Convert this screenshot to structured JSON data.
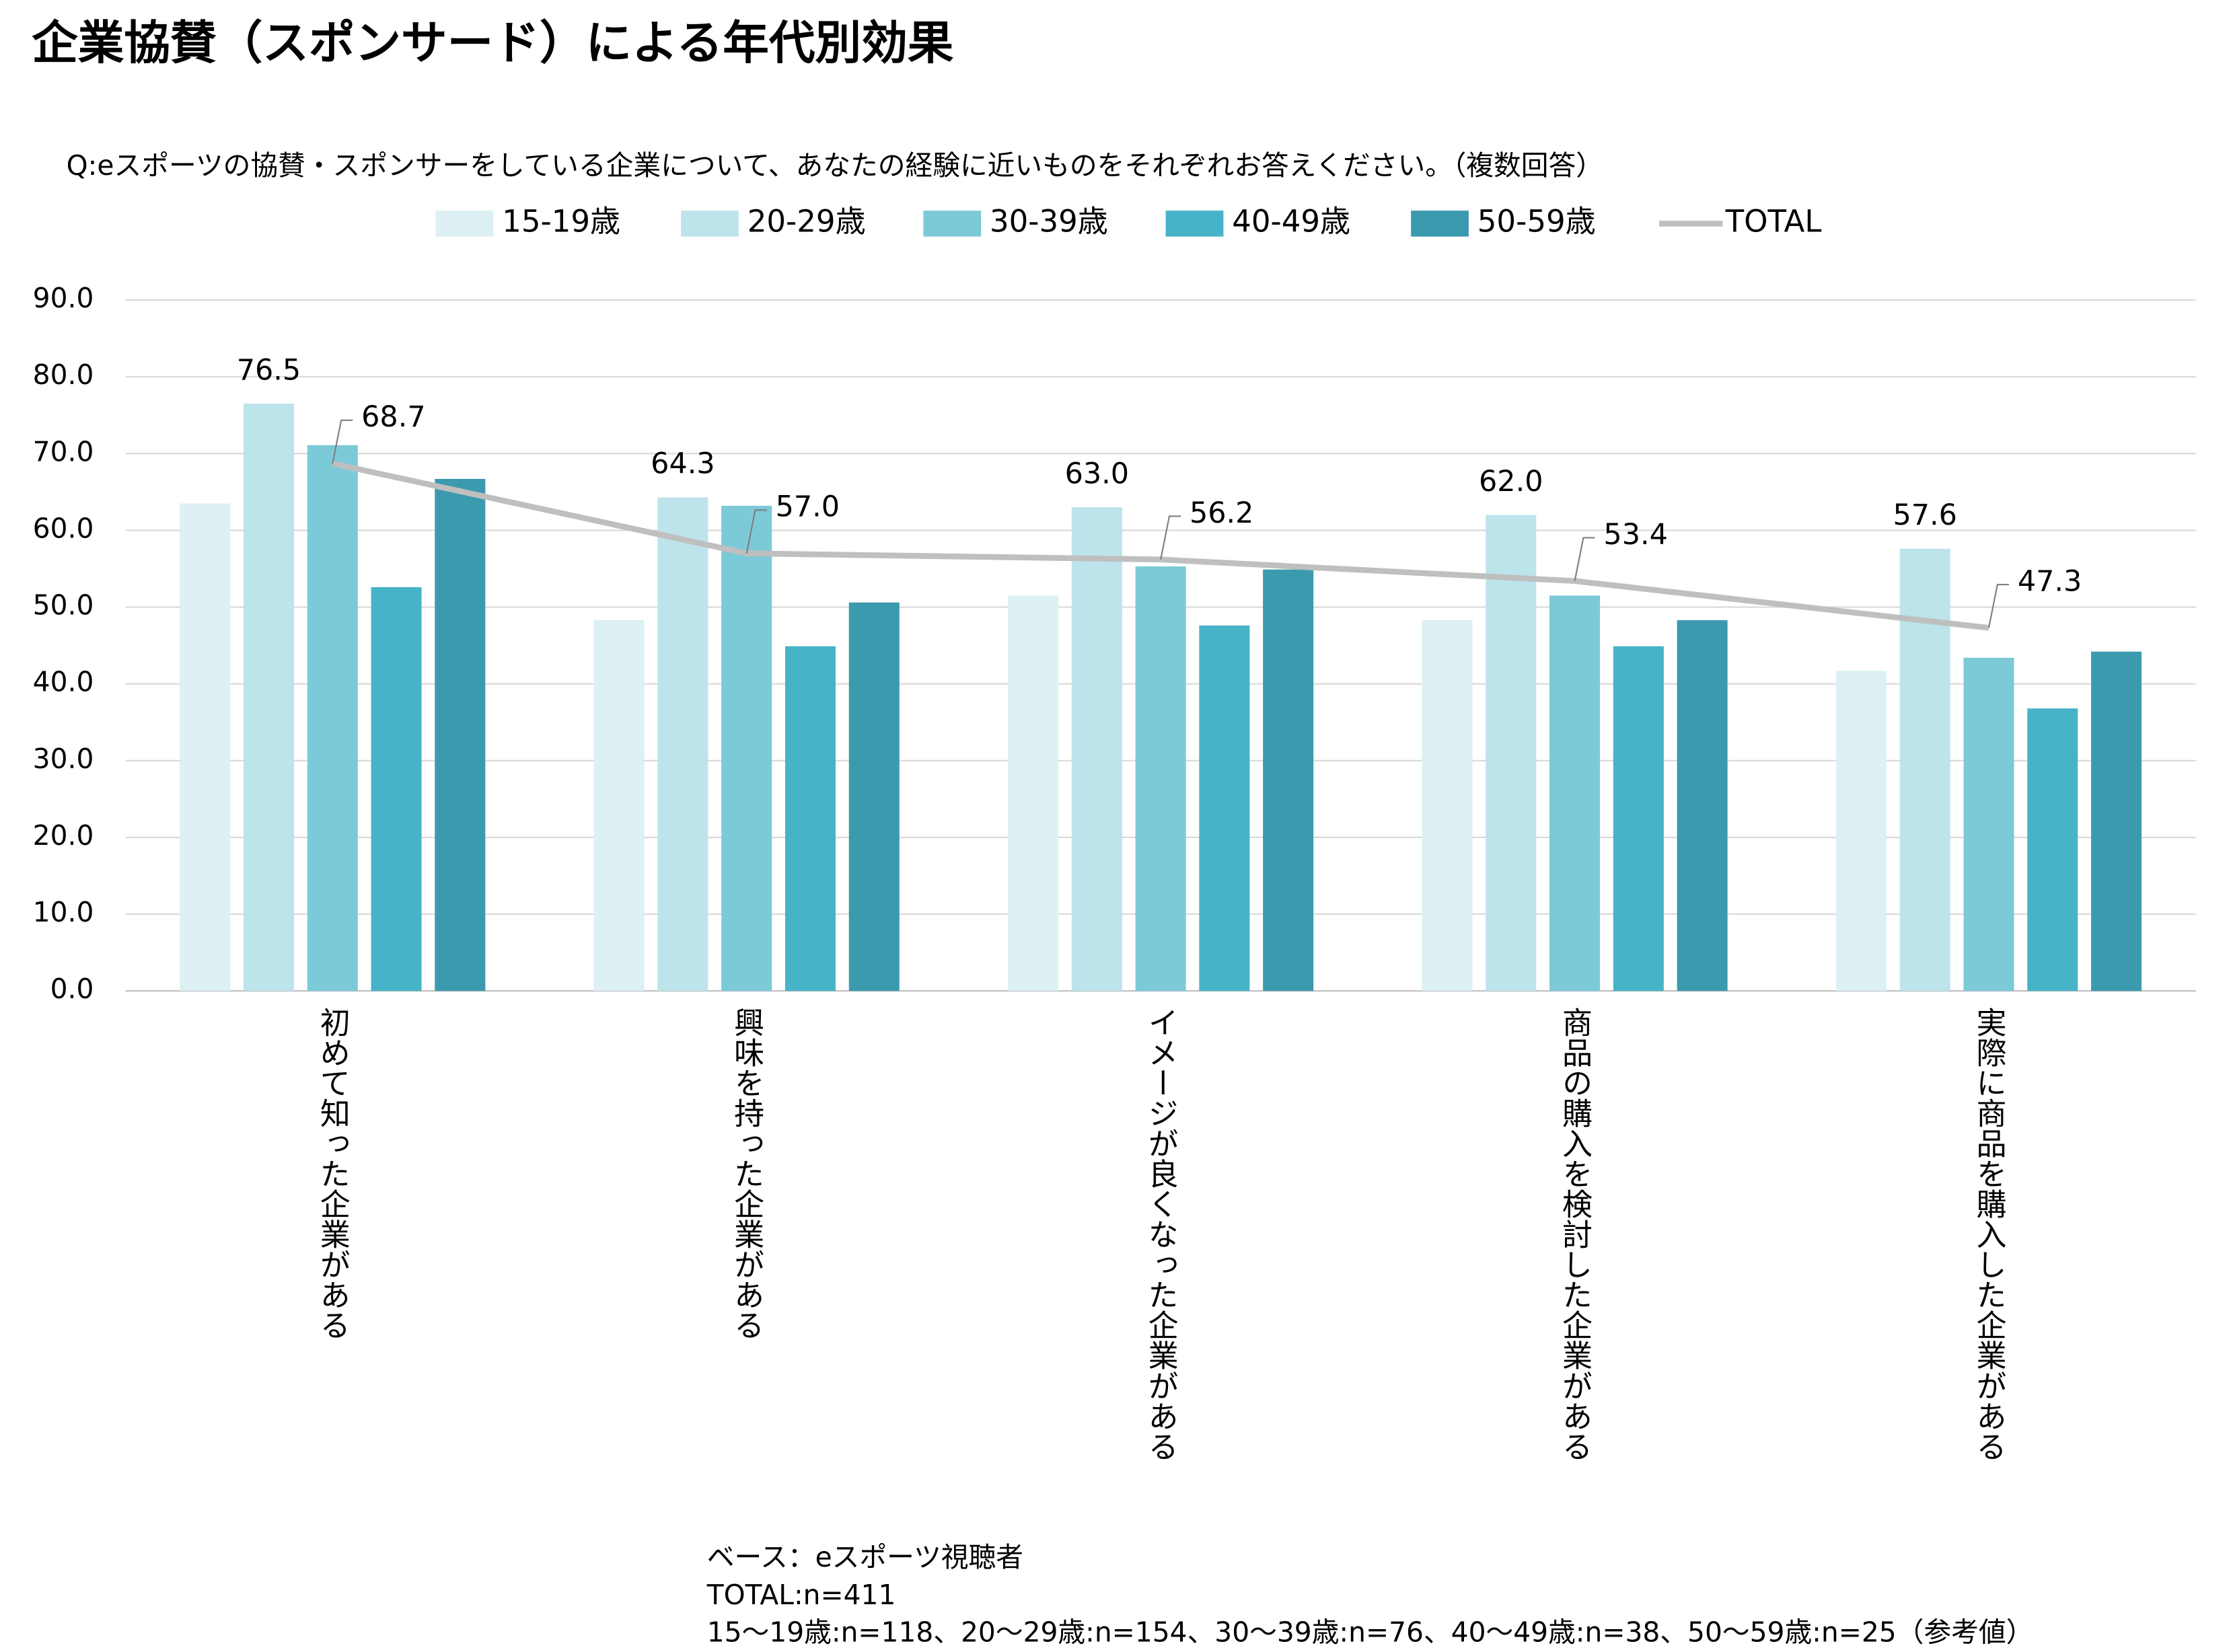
{
  "chart_data": {
    "type": "bar",
    "title": "企業協賛（スポンサード）による年代別効果",
    "subtitle": "Q:eスポーツの協賛・スポンサーをしている企業について、あなたの経験に近いものをそれぞれお答えください。（複数回答）",
    "categories": [
      "初めて知った企業がある",
      "興味を持った企業がある",
      "イメージが良くなった企業がある",
      "商品の購入を検討した企業がある",
      "実際に商品を購入した企業がある"
    ],
    "series": [
      {
        "name": "15-19歳",
        "color": "#ddf0f4",
        "values": [
          63.5,
          48.3,
          51.5,
          48.3,
          41.7
        ]
      },
      {
        "name": "20-29歳",
        "color": "#bde3eb",
        "values": [
          76.5,
          64.3,
          63.0,
          62.0,
          57.6
        ],
        "value_labels": [
          "76.5",
          "64.3",
          "63.0",
          "62.0",
          "57.6"
        ],
        "label_color": "#3a9fb2"
      },
      {
        "name": "30-39歳",
        "color": "#7ccad8",
        "values": [
          71.1,
          63.2,
          55.3,
          51.5,
          43.4
        ]
      },
      {
        "name": "40-49歳",
        "color": "#47b3c8",
        "values": [
          52.6,
          44.9,
          47.6,
          44.9,
          36.8
        ]
      },
      {
        "name": "50-59歳",
        "color": "#3c9aae",
        "values": [
          66.7,
          50.6,
          54.9,
          48.3,
          44.2
        ]
      },
      {
        "name": "TOTAL",
        "type": "line",
        "color": "#bfbfbf",
        "values": [
          68.7,
          57.0,
          56.2,
          53.4,
          47.3
        ],
        "value_labels": [
          "68.7",
          "57.0",
          "56.2",
          "53.4",
          "47.3"
        ],
        "label_color": "#000000"
      }
    ],
    "ylim": [
      0,
      90
    ],
    "yticks": [
      {
        "value": 0,
        "label": "0.0"
      },
      {
        "value": 10,
        "label": "10.0"
      },
      {
        "value": 20,
        "label": "20.0"
      },
      {
        "value": 30,
        "label": "30.0"
      },
      {
        "value": 40,
        "label": "40.0"
      },
      {
        "value": 50,
        "label": "50.0"
      },
      {
        "value": 60,
        "label": "60.0"
      },
      {
        "value": 70,
        "label": "70.0"
      },
      {
        "value": 80,
        "label": "80.0"
      },
      {
        "value": 90,
        "label": "90.0"
      }
    ],
    "grid": true,
    "legend": "top",
    "notes": [
      "ベース：eスポーツ視聴者",
      "TOTAL:n=411",
      "15〜19歳:n=118、20〜29歳:n=154、30〜39歳:n=76、40〜49歳:n=38、50〜59歳:n=25（参考値）"
    ]
  }
}
